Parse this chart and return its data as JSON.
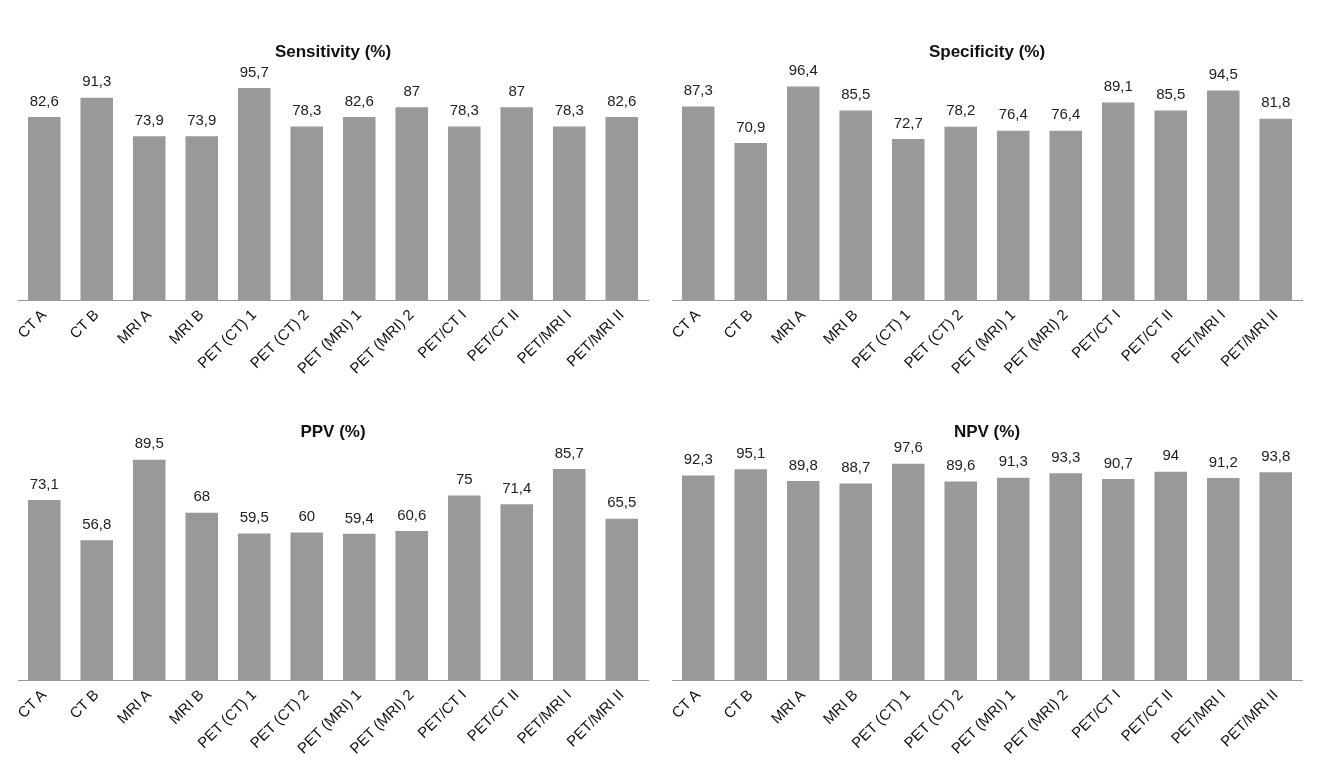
{
  "chart_data": [
    {
      "type": "bar",
      "title": "Sensitivity (%)",
      "categories": [
        "CT A",
        "CT B",
        "MRI A",
        "MRI B",
        "PET (CT) 1",
        "PET (CT) 2",
        "PET (MRI) 1",
        "PET (MRI) 2",
        "PET/CT I",
        "PET/CT II",
        "PET/MRI I",
        "PET/MRI II"
      ],
      "values": [
        82.6,
        91.3,
        73.9,
        73.9,
        95.7,
        78.3,
        82.6,
        87,
        78.3,
        87,
        78.3,
        82.6
      ],
      "value_labels": [
        "82,6",
        "91,3",
        "73,9",
        "73,9",
        "95,7",
        "78,3",
        "82,6",
        "87",
        "78,3",
        "87",
        "78,3",
        "82,6"
      ],
      "color": "#999999",
      "grid": false,
      "legend": false
    },
    {
      "type": "bar",
      "title": "Specificity (%)",
      "categories": [
        "CT A",
        "CT B",
        "MRI A",
        "MRI B",
        "PET (CT) 1",
        "PET (CT) 2",
        "PET (MRI) 1",
        "PET (MRI) 2",
        "PET/CT I",
        "PET/CT II",
        "PET/MRI I",
        "PET/MRI II"
      ],
      "values": [
        87.3,
        70.9,
        96.4,
        85.5,
        72.7,
        78.2,
        76.4,
        76.4,
        89.1,
        85.5,
        94.5,
        81.8
      ],
      "value_labels": [
        "87,3",
        "70,9",
        "96,4",
        "85,5",
        "72,7",
        "78,2",
        "76,4",
        "76,4",
        "89,1",
        "85,5",
        "94,5",
        "81,8"
      ],
      "color": "#999999",
      "grid": false,
      "legend": false
    },
    {
      "type": "bar",
      "title": "PPV (%)",
      "categories": [
        "CT A",
        "CT B",
        "MRI A",
        "MRI B",
        "PET (CT) 1",
        "PET (CT) 2",
        "PET (MRI) 1",
        "PET (MRI) 2",
        "PET/CT I",
        "PET/CT II",
        "PET/MRI I",
        "PET/MRI II"
      ],
      "values": [
        73.1,
        56.8,
        89.5,
        68,
        59.5,
        60,
        59.4,
        60.6,
        75,
        71.4,
        85.7,
        65.5
      ],
      "value_labels": [
        "73,1",
        "56,8",
        "89,5",
        "68",
        "59,5",
        "60",
        "59,4",
        "60,6",
        "75",
        "71,4",
        "85,7",
        "65,5"
      ],
      "color": "#999999",
      "grid": false,
      "legend": false
    },
    {
      "type": "bar",
      "title": "NPV (%)",
      "categories": [
        "CT A",
        "CT B",
        "MRI A",
        "MRI B",
        "PET (CT) 1",
        "PET (CT) 2",
        "PET (MRI) 1",
        "PET (MRI) 2",
        "PET/CT I",
        "PET/CT II",
        "PET/MRI I",
        "PET/MRI II"
      ],
      "values": [
        92.3,
        95.1,
        89.8,
        88.7,
        97.6,
        89.6,
        91.3,
        93.3,
        90.7,
        94,
        91.2,
        93.8
      ],
      "value_labels": [
        "92,3",
        "95,1",
        "89,8",
        "88,7",
        "97,6",
        "89,6",
        "91,3",
        "93,3",
        "90,7",
        "94",
        "91,2",
        "93,8"
      ],
      "color": "#999999",
      "grid": false,
      "legend": false
    }
  ]
}
